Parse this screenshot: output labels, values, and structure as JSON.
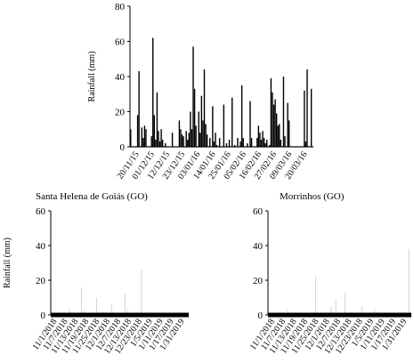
{
  "chart_data": [
    {
      "type": "bar",
      "title": "",
      "xlabel": "",
      "ylabel": "Rainfall (mm)",
      "ylim": [
        0,
        80
      ],
      "yticks": [
        0,
        20,
        40,
        60,
        80
      ],
      "xtick_labels": [
        "20/11/15",
        "01/12/15",
        "12/12/15",
        "23/12/15",
        "03/01/16",
        "14/01/16",
        "25/01/16",
        "05/02/16",
        "16/02/16",
        "27/02/16",
        "09/03/16",
        "20/03/16"
      ],
      "day_count": 132,
      "values": [
        10,
        0,
        0,
        0,
        0,
        18,
        43,
        0,
        11,
        5,
        12,
        10,
        0,
        0,
        0,
        6,
        62,
        18,
        4,
        31,
        9,
        3,
        10,
        4,
        0,
        2,
        0,
        0,
        0,
        0,
        8,
        0,
        0,
        0,
        0,
        15,
        10,
        7,
        6,
        0,
        9,
        4,
        8,
        20,
        10,
        57,
        33,
        12,
        0,
        20,
        8,
        29,
        15,
        44,
        13,
        7,
        0,
        5,
        0,
        23,
        3,
        8,
        1,
        0,
        5,
        0,
        0,
        24,
        0,
        2,
        0,
        4,
        0,
        28,
        0,
        1,
        0,
        5,
        0,
        3,
        35,
        5,
        0,
        0,
        2,
        0,
        26,
        5,
        0,
        0,
        0,
        5,
        12,
        8,
        4,
        9,
        5,
        2,
        4,
        0,
        1,
        39,
        31,
        24,
        27,
        19,
        12,
        13,
        4,
        0,
        40,
        6,
        0,
        25,
        15,
        0,
        0,
        0,
        0,
        0,
        0,
        0,
        0,
        0,
        0,
        32,
        3,
        44,
        0,
        0,
        33,
        0
      ]
    },
    {
      "type": "bar",
      "title": "Santa Helena de Goiás (GO)",
      "xlabel": "",
      "ylabel": "Rainfall (mm)",
      "ylim": [
        0,
        60
      ],
      "yticks": [
        0,
        20,
        40,
        60
      ],
      "xtick_labels": [
        "11/1/2018",
        "11/7/2018",
        "11/13/2018",
        "11/19/2018",
        "11/25/2018",
        "12/1/2018",
        "12/7/2018",
        "12/13/2018",
        "12/23/2018",
        "1/5/2019",
        "1/11/2019",
        "1/17/2019",
        "1/31/2019"
      ],
      "day_count": 92,
      "values": [
        0,
        0,
        0,
        0,
        0,
        0,
        0,
        0,
        0,
        0,
        0,
        0,
        4,
        0,
        0,
        0,
        1,
        0,
        0,
        0,
        16,
        0,
        3,
        0,
        0,
        0,
        0,
        0,
        0,
        0,
        10,
        0,
        0,
        0,
        2,
        0,
        0,
        0,
        0,
        0,
        6,
        0,
        0,
        0,
        0,
        0,
        0,
        0,
        0,
        12,
        0,
        3,
        0,
        0,
        0,
        0,
        0,
        0,
        0,
        0,
        26,
        0,
        0,
        0,
        0,
        0,
        0,
        0,
        0,
        0,
        0,
        0,
        0,
        0,
        0,
        0,
        0,
        0,
        0,
        0,
        0,
        0,
        0,
        0,
        0,
        0,
        0,
        0,
        0,
        0,
        0,
        0
      ]
    },
    {
      "type": "bar",
      "title": "Morrinhos (GO)",
      "xlabel": "",
      "ylabel": "",
      "ylim": [
        0,
        60
      ],
      "yticks": [
        0,
        20,
        40,
        60
      ],
      "xtick_labels": [
        "11/1/2018",
        "11/7/2018",
        "11/13/2018",
        "11/19/2018",
        "11/25/2018",
        "12/1/2018",
        "12/7/2018",
        "12/13/2018",
        "12/23/2018",
        "1/5/2019",
        "1/11/2019",
        "1/17/2019",
        "1/31/2019"
      ],
      "day_count": 92,
      "values": [
        0,
        0,
        0,
        0,
        0,
        0,
        0,
        0,
        0,
        0,
        0,
        0,
        3,
        0,
        0,
        0,
        0,
        0,
        0,
        0,
        0,
        0,
        0,
        0,
        0,
        0,
        0,
        0,
        0,
        0,
        22,
        0,
        0,
        0,
        0,
        0,
        0,
        0,
        0,
        0,
        5,
        0,
        0,
        9,
        0,
        0,
        0,
        0,
        0,
        13,
        0,
        0,
        0,
        0,
        0,
        0,
        0,
        0,
        0,
        0,
        5,
        0,
        0,
        0,
        0,
        0,
        0,
        0,
        3,
        0,
        0,
        0,
        0,
        0,
        0,
        0,
        0,
        0,
        0,
        0,
        0,
        0,
        0,
        0,
        0,
        0,
        0,
        0,
        0,
        0,
        38,
        0
      ]
    }
  ]
}
